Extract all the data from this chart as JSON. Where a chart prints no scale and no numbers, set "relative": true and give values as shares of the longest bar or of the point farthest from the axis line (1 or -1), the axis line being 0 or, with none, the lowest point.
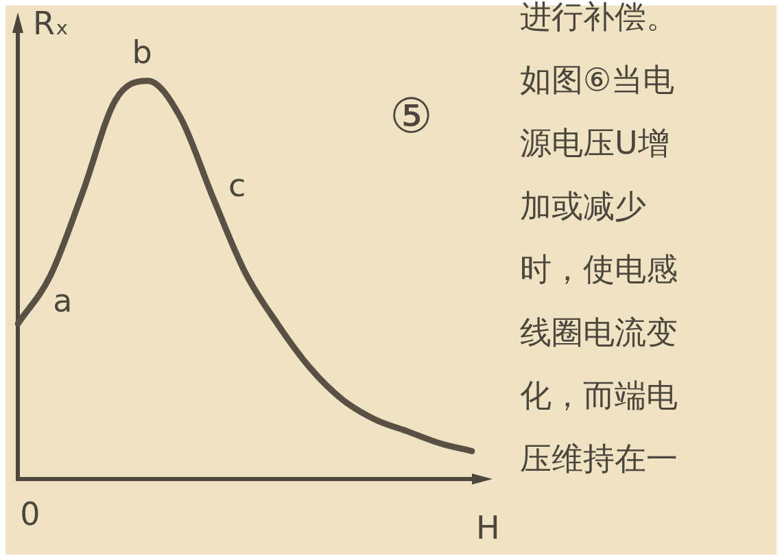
{
  "chart_data": {
    "type": "line",
    "relative": true,
    "xlabel": "H",
    "ylabel": "Rₓ",
    "categories": [
      null,
      null,
      null,
      null,
      null,
      null,
      null,
      null,
      null,
      null,
      null,
      null,
      null,
      null,
      null
    ],
    "series": [
      {
        "color": "#5a5044",
        "values": [
          0.39,
          0.51,
          0.72,
          0.95,
          1.0,
          0.91,
          0.71,
          0.52,
          0.39,
          0.28,
          0.2,
          0.15,
          0.12,
          0.09,
          0.07
        ]
      }
    ],
    "marker": "none",
    "line_style": "solid",
    "grid": false,
    "legend": false,
    "annotations": [
      "a",
      "b",
      "c",
      "⑤",
      "0",
      "进行补偿。",
      "如图⑥当电",
      "源电压U增",
      "加或减少",
      "时，使电感",
      "线圈电流变",
      "化，而端电",
      "压维持在一"
    ]
  }
}
